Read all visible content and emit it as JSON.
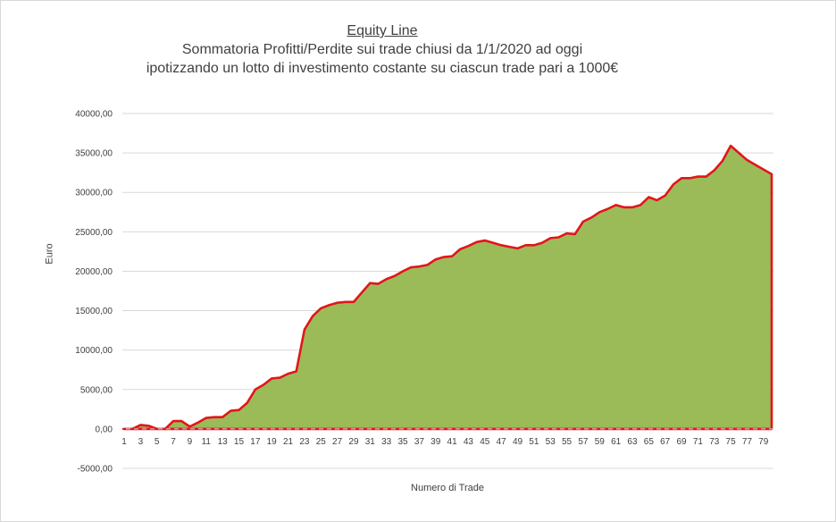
{
  "chart_data": {
    "type": "area",
    "title": "Equity Line",
    "subtitle_lines": [
      "Sommatoria Profitti/Perdite sui trade chiusi da 1/1/2020 ad oggi",
      "ipotizzando un lotto di investimento costante su ciascun trade pari a 1000€"
    ],
    "xlabel": "Numero di Trade",
    "ylabel": "Euro",
    "ylim": [
      -5000,
      40000
    ],
    "ytick_step": 5000,
    "yticks": [
      "-5000,00",
      "0,00",
      "5000,00",
      "10000,00",
      "15000,00",
      "20000,00",
      "25000,00",
      "30000,00",
      "35000,00",
      "40000,00"
    ],
    "xlim": [
      1,
      80
    ],
    "xticks": [
      1,
      3,
      5,
      7,
      9,
      11,
      13,
      15,
      17,
      19,
      21,
      23,
      25,
      27,
      29,
      31,
      33,
      35,
      37,
      39,
      41,
      43,
      45,
      47,
      49,
      51,
      53,
      55,
      57,
      59,
      61,
      63,
      65,
      67,
      69,
      71,
      73,
      75,
      77,
      79
    ],
    "grid": true,
    "legend": "none",
    "fill_color": "#9bbb59",
    "line_color": "#e3151a",
    "x": [
      1,
      2,
      3,
      4,
      5,
      6,
      7,
      8,
      9,
      10,
      11,
      12,
      13,
      14,
      15,
      16,
      17,
      18,
      19,
      20,
      21,
      22,
      23,
      24,
      25,
      26,
      27,
      28,
      29,
      30,
      31,
      32,
      33,
      34,
      35,
      36,
      37,
      38,
      39,
      40,
      41,
      42,
      43,
      44,
      45,
      46,
      47,
      48,
      49,
      50,
      51,
      52,
      53,
      54,
      55,
      56,
      57,
      58,
      59,
      60,
      61,
      62,
      63,
      64,
      65,
      66,
      67,
      68,
      69,
      70,
      71,
      72,
      73,
      74,
      75,
      76,
      77,
      78,
      79,
      80
    ],
    "values": [
      0,
      0,
      500,
      400,
      0,
      0,
      1000,
      1000,
      300,
      800,
      1400,
      1500,
      1500,
      2300,
      2400,
      3300,
      5000,
      5600,
      6400,
      6500,
      7000,
      7300,
      12600,
      14300,
      15300,
      15700,
      16000,
      16100,
      16100,
      17300,
      18500,
      18400,
      19000,
      19400,
      20000,
      20500,
      20600,
      20800,
      21500,
      21800,
      21900,
      22800,
      23200,
      23700,
      23900,
      23600,
      23300,
      23100,
      22900,
      23300,
      23300,
      23600,
      24200,
      24300,
      24800,
      24700,
      26300,
      26800,
      27500,
      27900,
      28400,
      28100,
      28100,
      28400,
      29400,
      29000,
      29600,
      31000,
      31800,
      31800,
      32000,
      32000,
      32800,
      34000,
      35900,
      35000,
      34100,
      33500,
      32900,
      32300
    ]
  }
}
